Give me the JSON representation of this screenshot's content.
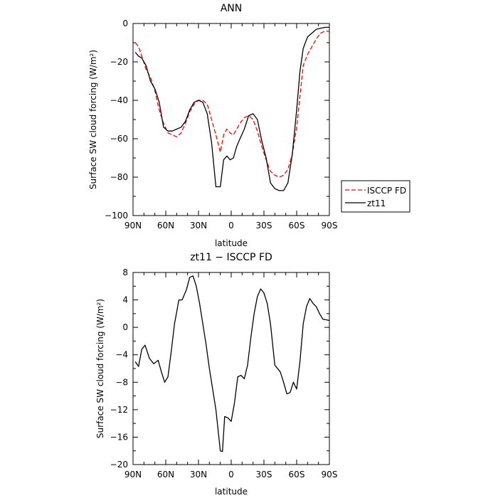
{
  "chart_data": [
    {
      "type": "line",
      "title": "ANN",
      "xlabel": "latitude",
      "ylabel": "Surface SW cloud forcing (W/m²)",
      "xlim": [
        90,
        -90
      ],
      "ylim": [
        -100,
        0
      ],
      "x_ticks": [
        90,
        60,
        30,
        0,
        -30,
        -60,
        -90
      ],
      "x_tick_labels": [
        "90N",
        "60N",
        "30N",
        "0",
        "30S",
        "60S",
        "90S"
      ],
      "y_ticks": [
        0,
        -20,
        -40,
        -60,
        -80,
        -100
      ],
      "y_tick_labels": [
        "0",
        "−20",
        "−40",
        "−60",
        "−80",
        "−100"
      ],
      "legend_position": "right",
      "series": [
        {
          "name": "ISCCP FD",
          "color": "#ff0000",
          "dash": "dashed",
          "x": [
            88,
            85,
            82,
            78,
            74,
            70,
            66,
            62,
            58,
            54,
            50,
            46,
            42,
            38,
            34,
            30,
            26,
            22,
            18,
            14,
            10,
            7,
            4,
            1,
            -2,
            -5,
            -8,
            -12,
            -16,
            -20,
            -24,
            -28,
            -32,
            -36,
            -40,
            -44,
            -48,
            -52,
            -56,
            -60,
            -63,
            -66,
            -70,
            -74,
            -78,
            -82,
            -86,
            -90
          ],
          "y": [
            -10,
            -12,
            -17,
            -24,
            -28,
            -35,
            -45,
            -52,
            -57,
            -58,
            -59,
            -57,
            -52,
            -46,
            -42,
            -40,
            -40,
            -42,
            -50,
            -58,
            -67,
            -58,
            -55,
            -57,
            -58,
            -55,
            -52,
            -49,
            -48,
            -50,
            -56,
            -64,
            -71,
            -77,
            -79,
            -80,
            -79,
            -76,
            -68,
            -54,
            -38,
            -22,
            -16,
            -12,
            -8,
            -5,
            -4,
            -4
          ]
        },
        {
          "name": "zt11",
          "color": "#000000",
          "dash": "solid",
          "x": [
            88,
            85,
            82,
            78,
            74,
            70,
            66,
            62,
            58,
            54,
            50,
            46,
            42,
            38,
            34,
            30,
            26,
            22,
            18,
            14,
            10,
            7,
            4,
            1,
            -2,
            -5,
            -8,
            -12,
            -16,
            -20,
            -24,
            -28,
            -32,
            -36,
            -40,
            -44,
            -48,
            -52,
            -56,
            -60,
            -63,
            -66,
            -70,
            -74,
            -78,
            -82,
            -86,
            -90
          ],
          "y": [
            -15,
            -17,
            -18,
            -22,
            -30,
            -34,
            -41,
            -54,
            -56,
            -56,
            -55,
            -54,
            -51,
            -45,
            -41,
            -40,
            -41,
            -47,
            -62,
            -85,
            -85,
            -71,
            -69,
            -71,
            -70,
            -64,
            -60,
            -55,
            -48,
            -47,
            -50,
            -61,
            -70,
            -83,
            -86,
            -87,
            -87,
            -83,
            -68,
            -45,
            -25,
            -13,
            -7,
            -5,
            -3,
            -2.5,
            -2,
            -2
          ]
        }
      ]
    },
    {
      "type": "line",
      "title": "zt11 − ISCCP FD",
      "xlabel": "latitude",
      "ylabel": "Surface SW cloud forcing (W/m²)",
      "xlim": [
        90,
        -90
      ],
      "ylim": [
        -20,
        8
      ],
      "x_ticks": [
        90,
        60,
        30,
        0,
        -30,
        -60,
        -90
      ],
      "x_tick_labels": [
        "90N",
        "60N",
        "30N",
        "0",
        "30S",
        "60S",
        "90S"
      ],
      "y_ticks": [
        8,
        4,
        0,
        -4,
        -8,
        -12,
        -16,
        -20
      ],
      "y_tick_labels": [
        "8",
        "4",
        "0",
        "−4",
        "−8",
        "−12",
        "−16",
        "−20"
      ],
      "series": [
        {
          "color": "#000000",
          "dash": "solid",
          "x": [
            88,
            85,
            82,
            79,
            75,
            71,
            67,
            64,
            61,
            58,
            55,
            52,
            48,
            45,
            41,
            38,
            35,
            32,
            29,
            26,
            23,
            20,
            17,
            14,
            10,
            8,
            6,
            3,
            0,
            -3,
            -6,
            -9,
            -12,
            -15,
            -18,
            -21,
            -24,
            -27,
            -30,
            -33,
            -36,
            -40,
            -45,
            -48,
            -51,
            -54,
            -57,
            -60,
            -63,
            -66,
            -69,
            -72,
            -75,
            -78,
            -81,
            -84,
            -87,
            -90
          ],
          "y": [
            -5,
            -5.7,
            -3.2,
            -2.6,
            -4.5,
            -5.3,
            -4.8,
            -6.5,
            -8,
            -7.2,
            -3.5,
            0.5,
            4,
            4,
            5.5,
            7.3,
            7.5,
            6,
            3.5,
            0.5,
            -2.5,
            -6,
            -9,
            -12,
            -18,
            -18.1,
            -13,
            -13.2,
            -13.7,
            -11,
            -7.2,
            -7,
            -7.5,
            -5.5,
            -1.5,
            2,
            4.5,
            5.6,
            5,
            3.5,
            0.5,
            -5.5,
            -6.5,
            -8,
            -9.7,
            -9.5,
            -8,
            -9,
            -5,
            0.5,
            3,
            4.2,
            3.5,
            3,
            2,
            1.2,
            1.1,
            1
          ]
        }
      ]
    }
  ]
}
